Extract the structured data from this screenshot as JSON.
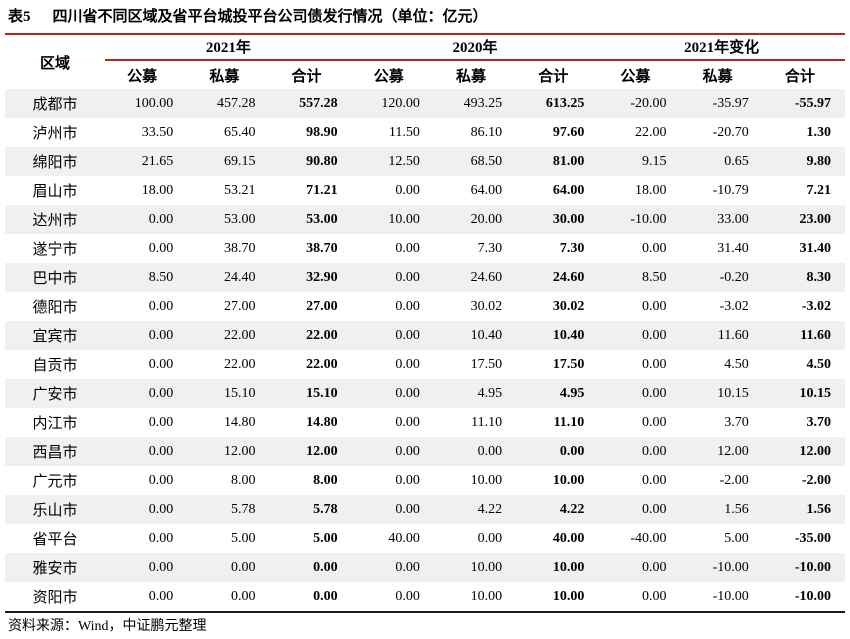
{
  "page": {
    "tag": "表5",
    "title": "四川省不同区域及省平台城投平台公司债发行情况（单位：亿元）",
    "source": "资料来源：Wind，中证鹏元整理"
  },
  "table": {
    "region_header": "区域",
    "groups": [
      "2021年",
      "2020年",
      "2021年变化"
    ],
    "sub_headers": [
      "公募",
      "私募",
      "合计"
    ],
    "rows": [
      {
        "region": "成都市",
        "values": [
          "100.00",
          "457.28",
          "557.28",
          "120.00",
          "493.25",
          "613.25",
          "-20.00",
          "-35.97",
          "-55.97"
        ]
      },
      {
        "region": "泸州市",
        "values": [
          "33.50",
          "65.40",
          "98.90",
          "11.50",
          "86.10",
          "97.60",
          "22.00",
          "-20.70",
          "1.30"
        ]
      },
      {
        "region": "绵阳市",
        "values": [
          "21.65",
          "69.15",
          "90.80",
          "12.50",
          "68.50",
          "81.00",
          "9.15",
          "0.65",
          "9.80"
        ]
      },
      {
        "region": "眉山市",
        "values": [
          "18.00",
          "53.21",
          "71.21",
          "0.00",
          "64.00",
          "64.00",
          "18.00",
          "-10.79",
          "7.21"
        ]
      },
      {
        "region": "达州市",
        "values": [
          "0.00",
          "53.00",
          "53.00",
          "10.00",
          "20.00",
          "30.00",
          "-10.00",
          "33.00",
          "23.00"
        ]
      },
      {
        "region": "遂宁市",
        "values": [
          "0.00",
          "38.70",
          "38.70",
          "0.00",
          "7.30",
          "7.30",
          "0.00",
          "31.40",
          "31.40"
        ]
      },
      {
        "region": "巴中市",
        "values": [
          "8.50",
          "24.40",
          "32.90",
          "0.00",
          "24.60",
          "24.60",
          "8.50",
          "-0.20",
          "8.30"
        ]
      },
      {
        "region": "德阳市",
        "values": [
          "0.00",
          "27.00",
          "27.00",
          "0.00",
          "30.02",
          "30.02",
          "0.00",
          "-3.02",
          "-3.02"
        ]
      },
      {
        "region": "宜宾市",
        "values": [
          "0.00",
          "22.00",
          "22.00",
          "0.00",
          "10.40",
          "10.40",
          "0.00",
          "11.60",
          "11.60"
        ]
      },
      {
        "region": "自贡市",
        "values": [
          "0.00",
          "22.00",
          "22.00",
          "0.00",
          "17.50",
          "17.50",
          "0.00",
          "4.50",
          "4.50"
        ]
      },
      {
        "region": "广安市",
        "values": [
          "0.00",
          "15.10",
          "15.10",
          "0.00",
          "4.95",
          "4.95",
          "0.00",
          "10.15",
          "10.15"
        ]
      },
      {
        "region": "内江市",
        "values": [
          "0.00",
          "14.80",
          "14.80",
          "0.00",
          "11.10",
          "11.10",
          "0.00",
          "3.70",
          "3.70"
        ]
      },
      {
        "region": "西昌市",
        "values": [
          "0.00",
          "12.00",
          "12.00",
          "0.00",
          "0.00",
          "0.00",
          "0.00",
          "12.00",
          "12.00"
        ]
      },
      {
        "region": "广元市",
        "values": [
          "0.00",
          "8.00",
          "8.00",
          "0.00",
          "10.00",
          "10.00",
          "0.00",
          "-2.00",
          "-2.00"
        ]
      },
      {
        "region": "乐山市",
        "values": [
          "0.00",
          "5.78",
          "5.78",
          "0.00",
          "4.22",
          "4.22",
          "0.00",
          "1.56",
          "1.56"
        ]
      },
      {
        "region": "省平台",
        "values": [
          "0.00",
          "5.00",
          "5.00",
          "40.00",
          "0.00",
          "40.00",
          "-40.00",
          "5.00",
          "-35.00"
        ]
      },
      {
        "region": "雅安市",
        "values": [
          "0.00",
          "0.00",
          "0.00",
          "0.00",
          "10.00",
          "10.00",
          "0.00",
          "-10.00",
          "-10.00"
        ]
      },
      {
        "region": "资阳市",
        "values": [
          "0.00",
          "0.00",
          "0.00",
          "0.00",
          "10.00",
          "10.00",
          "0.00",
          "-10.00",
          "-10.00"
        ]
      }
    ]
  },
  "colors": {
    "accent_red": "#b3261a",
    "stripe_gray": "#f0f0f0",
    "border_black": "#1a1a1a"
  }
}
